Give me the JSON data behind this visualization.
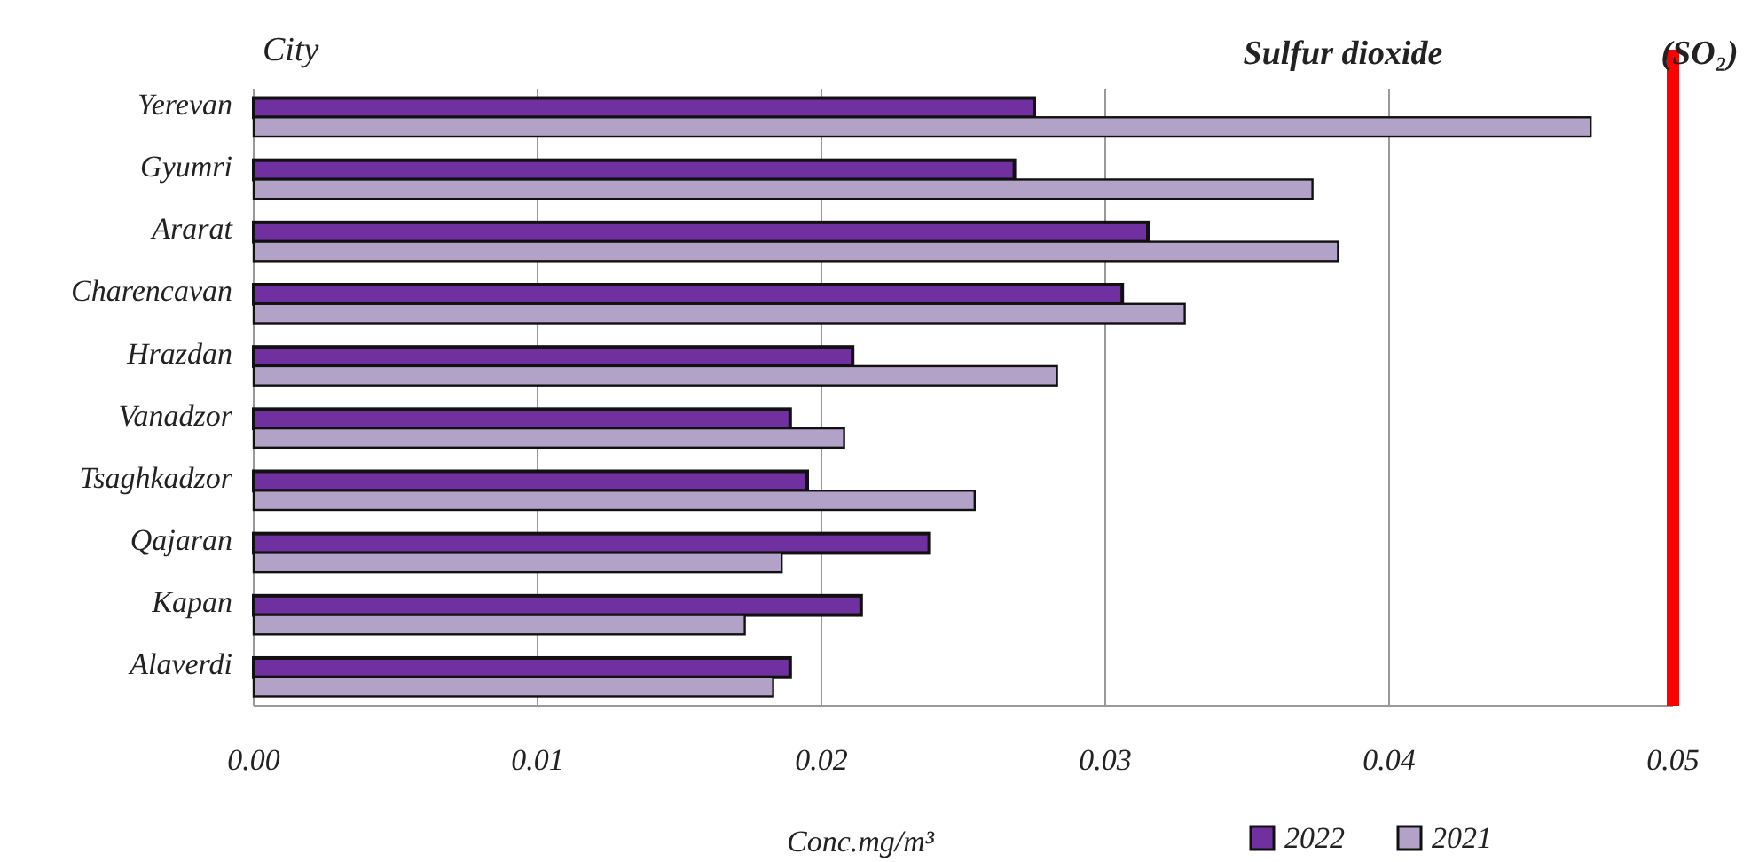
{
  "chart_data": {
    "type": "bar",
    "orientation": "horizontal",
    "title": "Sulfur dioxide",
    "xlabel": "Conc.mg/m³",
    "ylabel": "City",
    "annotations": [
      "(SO₂)"
    ],
    "categories": [
      "Yerevan",
      "Gyumri",
      "Ararat",
      "Charencavan",
      "Hrazdan",
      "Vanadzor",
      "Tsaghkadzor",
      "Qajaran",
      "Kapan",
      "Alaverdi"
    ],
    "series": [
      {
        "name": "2022",
        "color": "#7030a0",
        "values": [
          0.0275,
          0.0268,
          0.0315,
          0.0306,
          0.0211,
          0.0189,
          0.0195,
          0.0238,
          0.0214,
          0.0189
        ]
      },
      {
        "name": "2021",
        "color": "#b3a2c7",
        "values": [
          0.0471,
          0.0373,
          0.0382,
          0.0328,
          0.0283,
          0.0208,
          0.0254,
          0.0186,
          0.0173,
          0.0183
        ]
      }
    ],
    "xlim": [
      0,
      0.05
    ],
    "xticks": [
      {
        "value": 0,
        "label": "0.00"
      },
      {
        "value": 0.01,
        "label": "0.01"
      },
      {
        "value": 0.02,
        "label": "0.02"
      },
      {
        "value": 0.03,
        "label": "0.03"
      },
      {
        "value": 0.04,
        "label": "0.04"
      },
      {
        "value": 0.05,
        "label": "0.05"
      }
    ],
    "ref_lines": [
      {
        "axis": "x",
        "value": 0.05,
        "color": "#ff0000"
      }
    ],
    "grid": "x",
    "legend": "bottom right"
  }
}
